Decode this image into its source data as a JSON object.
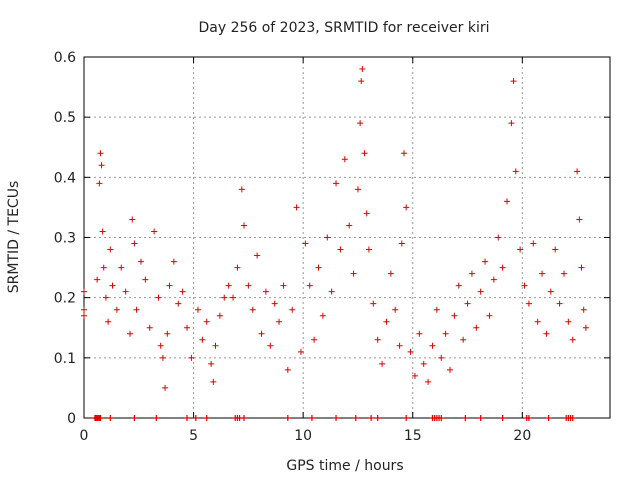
{
  "chart_data": {
    "type": "scatter",
    "title": "Day 256 of 2023, SRMTID for receiver kiri",
    "xlabel": "GPS time / hours",
    "ylabel": "SRMTID / TECUs",
    "xlim": [
      0,
      24
    ],
    "ylim": [
      0,
      0.6
    ],
    "xticks": [
      0,
      5,
      10,
      15,
      20
    ],
    "xtick_labels": [
      "0",
      "5",
      "10",
      "15",
      "20"
    ],
    "yticks": [
      0,
      0.1,
      0.2,
      0.3,
      0.4,
      0.5,
      0.6
    ],
    "ytick_labels": [
      "0",
      "0.1",
      "0.2",
      "0.3",
      "0.4",
      "0.5",
      "0.6"
    ],
    "grid": true,
    "marker": "+",
    "series": [
      {
        "name": "SRMTID",
        "color": "#e00000",
        "points": [
          [
            0.0,
            0.18
          ],
          [
            0.0,
            0.21
          ],
          [
            0.0,
            0.17
          ],
          [
            0.6,
            0.23
          ],
          [
            0.7,
            0.39
          ],
          [
            0.75,
            0.44
          ],
          [
            0.8,
            0.42
          ],
          [
            0.85,
            0.31
          ],
          [
            0.9,
            0.25
          ],
          [
            1.0,
            0.2
          ],
          [
            1.1,
            0.16
          ],
          [
            1.2,
            0.28
          ],
          [
            1.3,
            0.22
          ],
          [
            1.5,
            0.18
          ],
          [
            1.7,
            0.25
          ],
          [
            1.9,
            0.21
          ],
          [
            2.1,
            0.14
          ],
          [
            2.2,
            0.33
          ],
          [
            2.3,
            0.29
          ],
          [
            2.4,
            0.18
          ],
          [
            2.6,
            0.26
          ],
          [
            2.8,
            0.23
          ],
          [
            3.0,
            0.15
          ],
          [
            3.2,
            0.31
          ],
          [
            3.4,
            0.2
          ],
          [
            3.5,
            0.12
          ],
          [
            3.6,
            0.1
          ],
          [
            3.7,
            0.05
          ],
          [
            3.8,
            0.14
          ],
          [
            3.9,
            0.22
          ],
          [
            4.1,
            0.26
          ],
          [
            4.3,
            0.19
          ],
          [
            4.5,
            0.21
          ],
          [
            4.7,
            0.15
          ],
          [
            4.9,
            0.1
          ],
          [
            5.2,
            0.18
          ],
          [
            5.4,
            0.13
          ],
          [
            5.6,
            0.16
          ],
          [
            5.8,
            0.09
          ],
          [
            5.9,
            0.06
          ],
          [
            6.0,
            0.12
          ],
          [
            6.2,
            0.17
          ],
          [
            6.4,
            0.2
          ],
          [
            6.6,
            0.22
          ],
          [
            6.8,
            0.2
          ],
          [
            7.0,
            0.25
          ],
          [
            7.2,
            0.38
          ],
          [
            7.3,
            0.32
          ],
          [
            7.5,
            0.22
          ],
          [
            7.7,
            0.18
          ],
          [
            7.9,
            0.27
          ],
          [
            8.1,
            0.14
          ],
          [
            8.3,
            0.21
          ],
          [
            8.5,
            0.12
          ],
          [
            8.7,
            0.19
          ],
          [
            8.9,
            0.16
          ],
          [
            9.1,
            0.22
          ],
          [
            9.3,
            0.08
          ],
          [
            9.5,
            0.18
          ],
          [
            9.7,
            0.35
          ],
          [
            9.9,
            0.11
          ],
          [
            10.1,
            0.29
          ],
          [
            10.3,
            0.22
          ],
          [
            10.5,
            0.13
          ],
          [
            10.7,
            0.25
          ],
          [
            10.9,
            0.17
          ],
          [
            11.1,
            0.3
          ],
          [
            11.3,
            0.21
          ],
          [
            11.5,
            0.39
          ],
          [
            11.7,
            0.28
          ],
          [
            11.9,
            0.43
          ],
          [
            12.1,
            0.32
          ],
          [
            12.3,
            0.24
          ],
          [
            12.5,
            0.38
          ],
          [
            12.6,
            0.49
          ],
          [
            12.65,
            0.56
          ],
          [
            12.7,
            0.58
          ],
          [
            12.8,
            0.44
          ],
          [
            12.9,
            0.34
          ],
          [
            13.0,
            0.28
          ],
          [
            13.2,
            0.19
          ],
          [
            13.4,
            0.13
          ],
          [
            13.6,
            0.09
          ],
          [
            13.8,
            0.16
          ],
          [
            14.0,
            0.24
          ],
          [
            14.2,
            0.18
          ],
          [
            14.4,
            0.12
          ],
          [
            14.5,
            0.29
          ],
          [
            14.6,
            0.44
          ],
          [
            14.7,
            0.35
          ],
          [
            14.9,
            0.11
          ],
          [
            15.1,
            0.07
          ],
          [
            15.3,
            0.14
          ],
          [
            15.5,
            0.09
          ],
          [
            15.7,
            0.06
          ],
          [
            15.9,
            0.12
          ],
          [
            16.1,
            0.18
          ],
          [
            16.3,
            0.1
          ],
          [
            16.5,
            0.14
          ],
          [
            16.7,
            0.08
          ],
          [
            16.9,
            0.17
          ],
          [
            17.1,
            0.22
          ],
          [
            17.3,
            0.13
          ],
          [
            17.5,
            0.19
          ],
          [
            17.7,
            0.24
          ],
          [
            17.9,
            0.15
          ],
          [
            18.1,
            0.21
          ],
          [
            18.3,
            0.26
          ],
          [
            18.5,
            0.17
          ],
          [
            18.7,
            0.23
          ],
          [
            18.9,
            0.3
          ],
          [
            19.1,
            0.25
          ],
          [
            19.3,
            0.36
          ],
          [
            19.5,
            0.49
          ],
          [
            19.6,
            0.56
          ],
          [
            19.7,
            0.41
          ],
          [
            19.9,
            0.28
          ],
          [
            20.1,
            0.22
          ],
          [
            20.3,
            0.19
          ],
          [
            20.5,
            0.29
          ],
          [
            20.7,
            0.16
          ],
          [
            20.9,
            0.24
          ],
          [
            21.1,
            0.14
          ],
          [
            21.3,
            0.21
          ],
          [
            21.5,
            0.28
          ],
          [
            21.7,
            0.19
          ],
          [
            21.9,
            0.24
          ],
          [
            22.1,
            0.16
          ],
          [
            22.3,
            0.13
          ],
          [
            22.5,
            0.41
          ],
          [
            22.6,
            0.33
          ],
          [
            22.7,
            0.25
          ],
          [
            22.8,
            0.18
          ],
          [
            22.9,
            0.15
          ]
        ]
      }
    ],
    "zero_points_x": [
      0.5,
      0.55,
      0.6,
      0.65,
      0.7,
      0.75,
      1.2,
      2.3,
      3.3,
      4.7,
      5.1,
      5.6,
      6.9,
      7.0,
      7.1,
      7.3,
      9.3,
      10.4,
      11.5,
      12.4,
      13.1,
      13.4,
      14.7,
      15.9,
      16.0,
      16.1,
      16.2,
      16.3,
      17.4,
      18.1,
      19.1,
      20.2,
      20.3,
      21.2,
      22.0,
      22.1,
      22.2,
      22.3
    ]
  }
}
